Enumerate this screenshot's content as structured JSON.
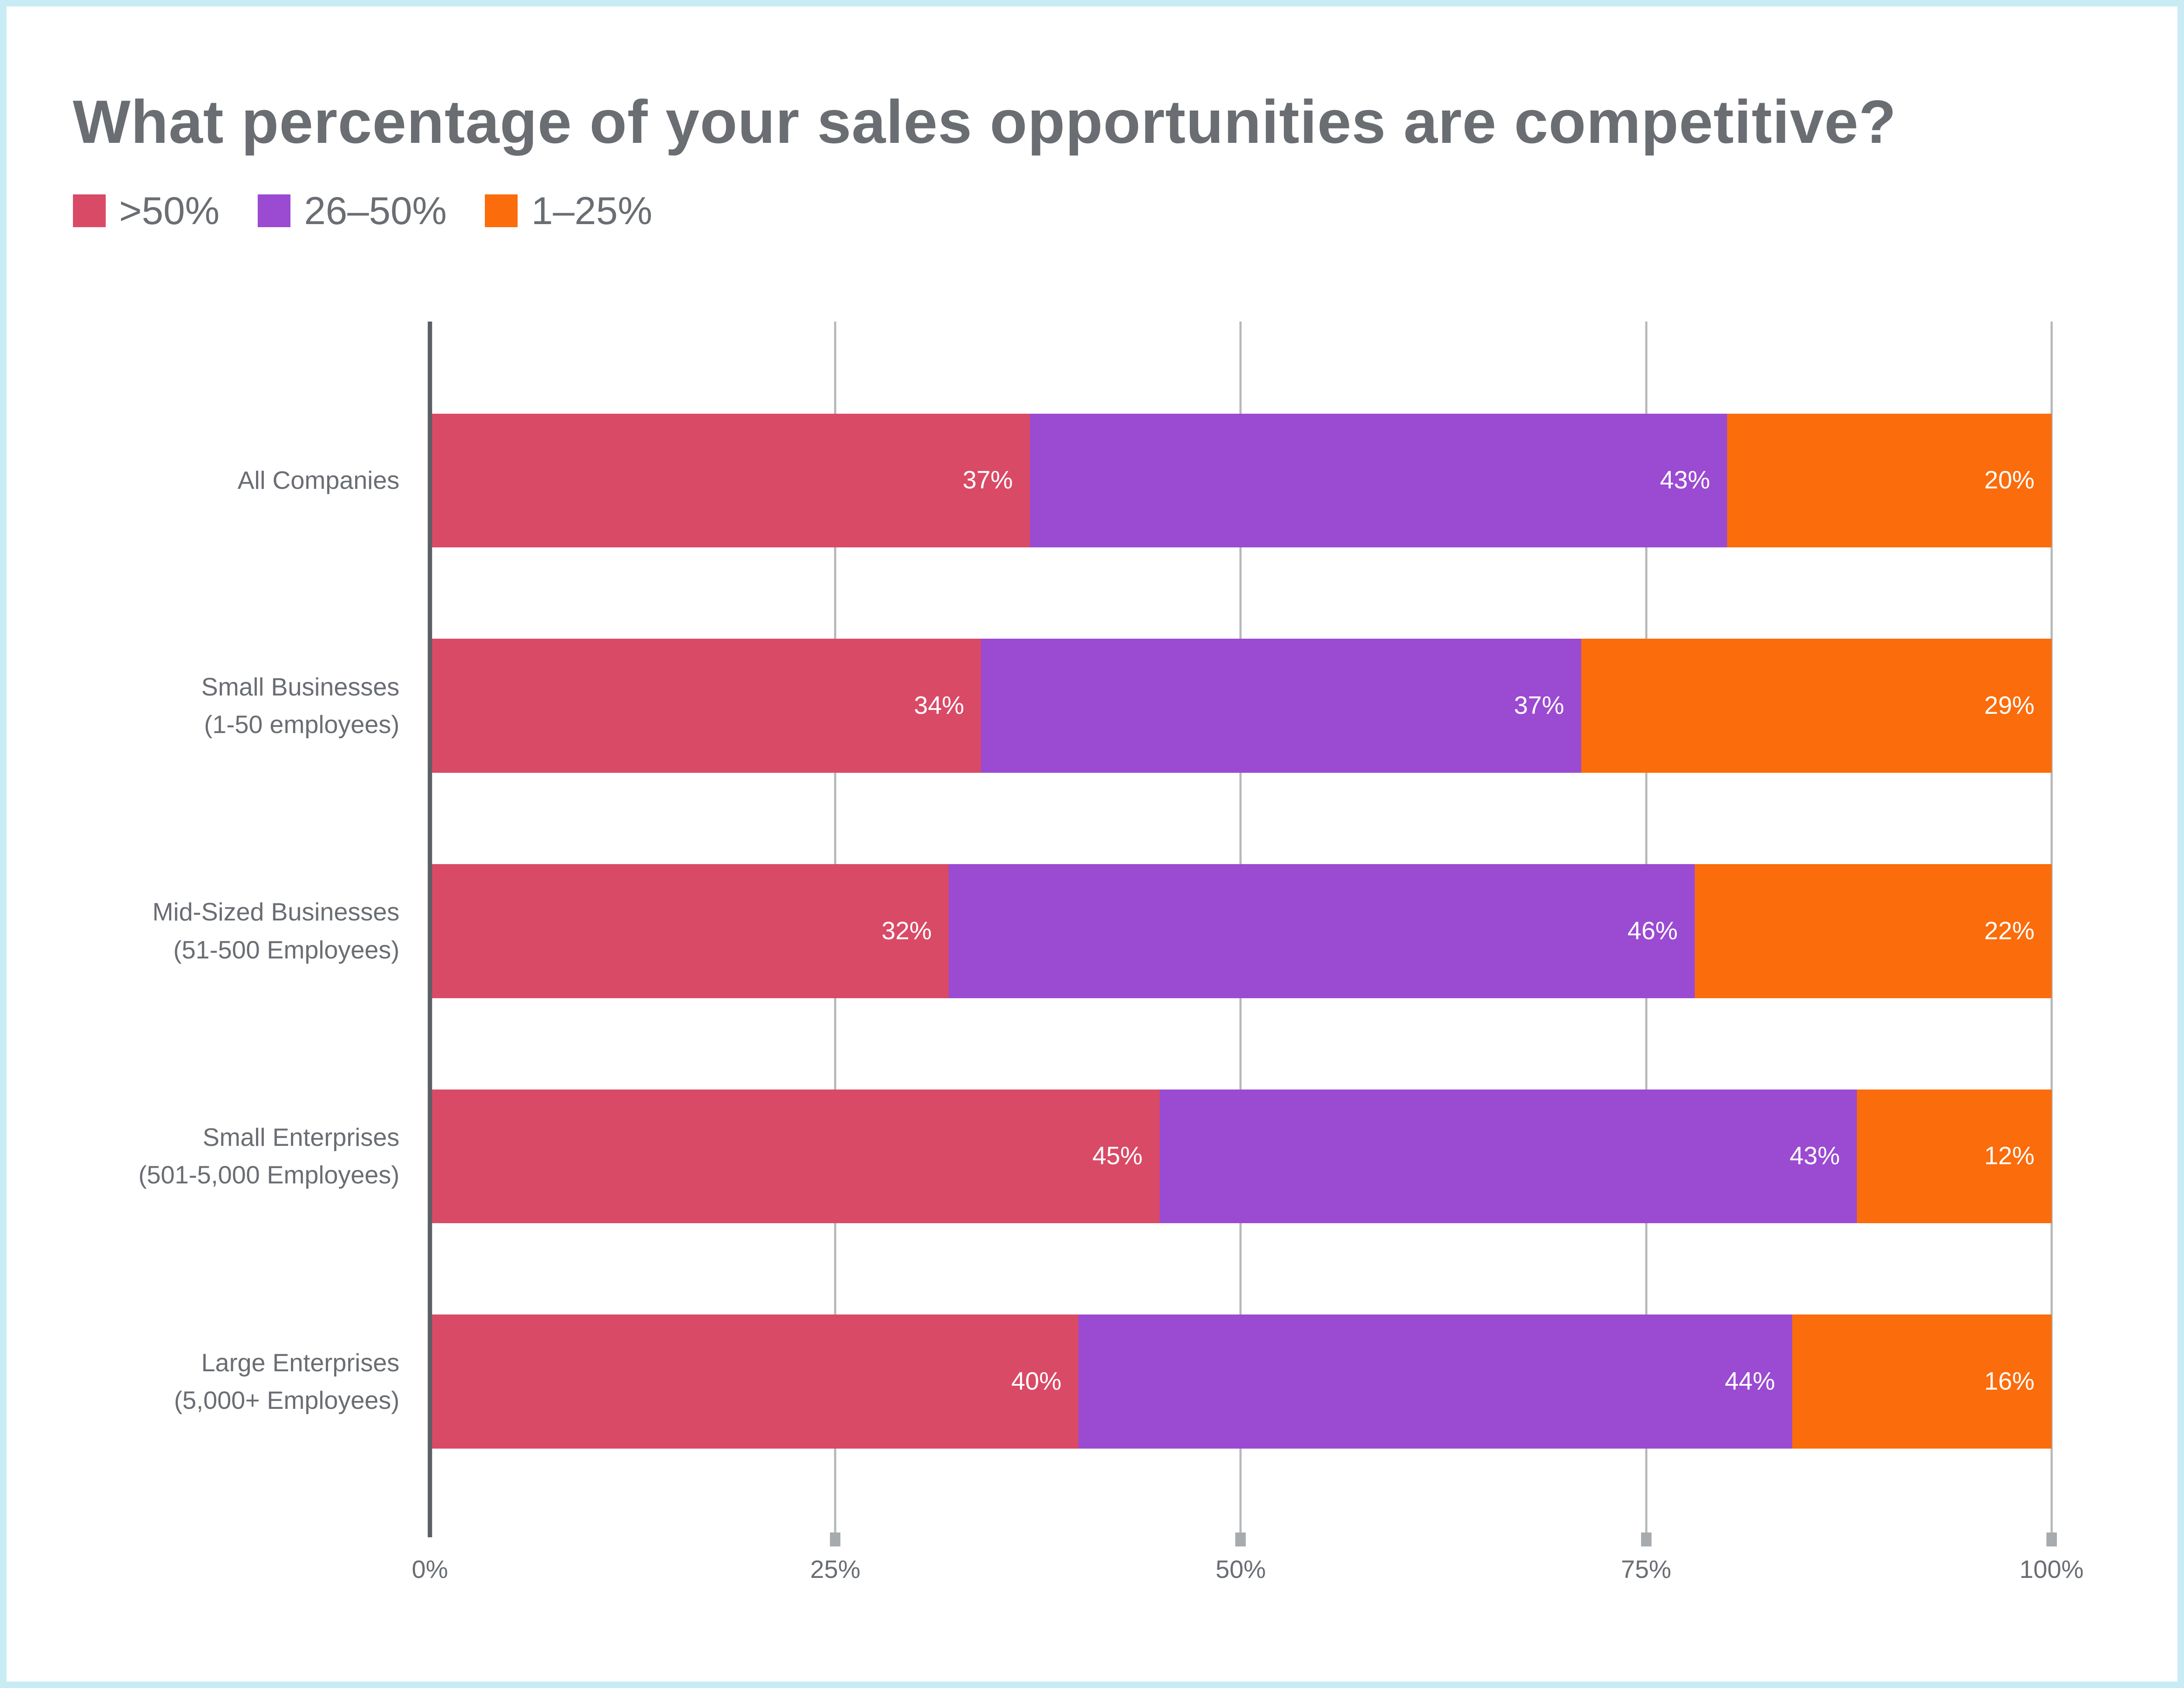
{
  "title": "What percentage of your sales opportunities are competitive?",
  "legend": [
    {
      "label": ">50%",
      "color": "#d94a66"
    },
    {
      "label": "26–50%",
      "color": "#9b4ad2"
    },
    {
      "label": "1–25%",
      "color": "#fb6c0c"
    }
  ],
  "row_labels": [
    "All Companies",
    "Small Businesses\n(1-50 employees)",
    "Mid-Sized Businesses\n(51-500 Employees)",
    "Small Enterprises\n(501-5,000 Employees)",
    "Large Enterprises\n(5,000+ Employees)"
  ],
  "chart_data": {
    "type": "bar",
    "stacked": true,
    "orientation": "horizontal",
    "title": "What percentage of your sales opportunities are competitive?",
    "categories": [
      "All Companies",
      "Small Businesses (1-50 employees)",
      "Mid-Sized Businesses (51-500 Employees)",
      "Small Enterprises (501-5,000 Employees)",
      "Large Enterprises (5,000+ Employees)"
    ],
    "series": [
      {
        "name": ">50%",
        "color": "#d94a66",
        "values": [
          37,
          34,
          32,
          45,
          40
        ]
      },
      {
        "name": "26–50%",
        "color": "#9b4ad2",
        "values": [
          43,
          37,
          46,
          43,
          44
        ]
      },
      {
        "name": "1–25%",
        "color": "#fb6c0c",
        "values": [
          20,
          29,
          22,
          12,
          16
        ]
      }
    ],
    "x_ticks": [
      "0%",
      "25%",
      "50%",
      "75%",
      "100%"
    ],
    "xlim": [
      0,
      100
    ],
    "grid": "vertical-gridlines-behind-bars",
    "value_labels": "inside-right-white",
    "legend_position": "top-left"
  },
  "colors": {
    "frame_border": "#c9ecf4",
    "background": "#ffffff",
    "text_gray": "#6a6e73",
    "axis_line": "#5c6064",
    "gridline": "#b5b8ba",
    "tick_mark": "#a8abae",
    "value_text": "#ffffff"
  }
}
